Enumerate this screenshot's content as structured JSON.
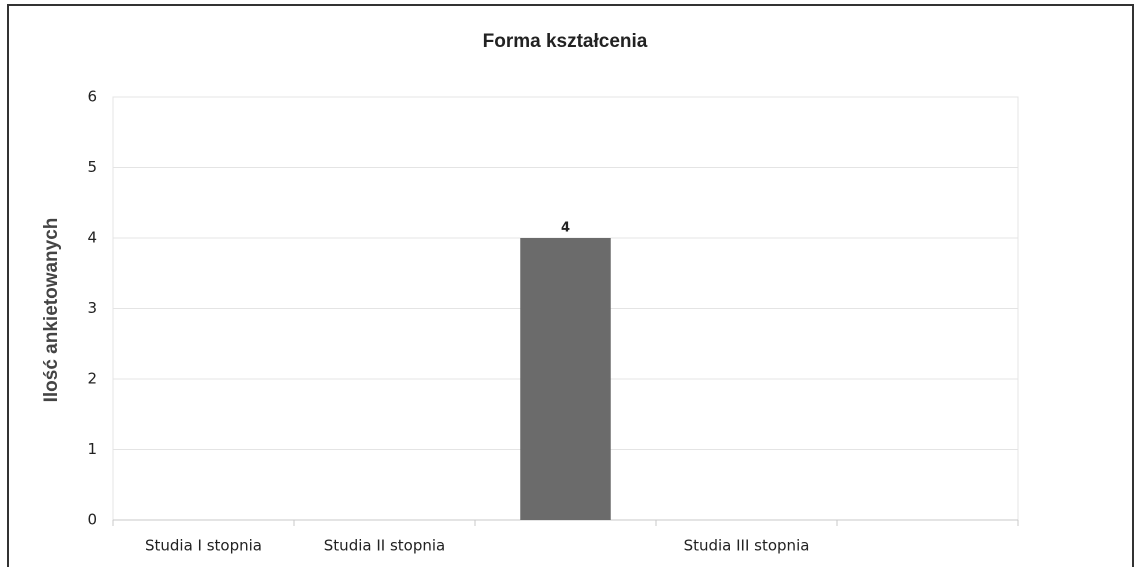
{
  "chart_data": {
    "type": "bar",
    "title": "Forma kształcenia",
    "y_label": "Ilość ankietowanych",
    "categories": [
      "Studia I stopnia",
      "Studia II stopnia",
      null,
      "Studia III stopnia",
      null
    ],
    "values": [
      0,
      0,
      4,
      0,
      0
    ],
    "color": "#6b6b6b",
    "ylim": [
      0,
      6
    ],
    "yticks": [
      0,
      1,
      2,
      3,
      4,
      5,
      6
    ],
    "grid": true
  }
}
